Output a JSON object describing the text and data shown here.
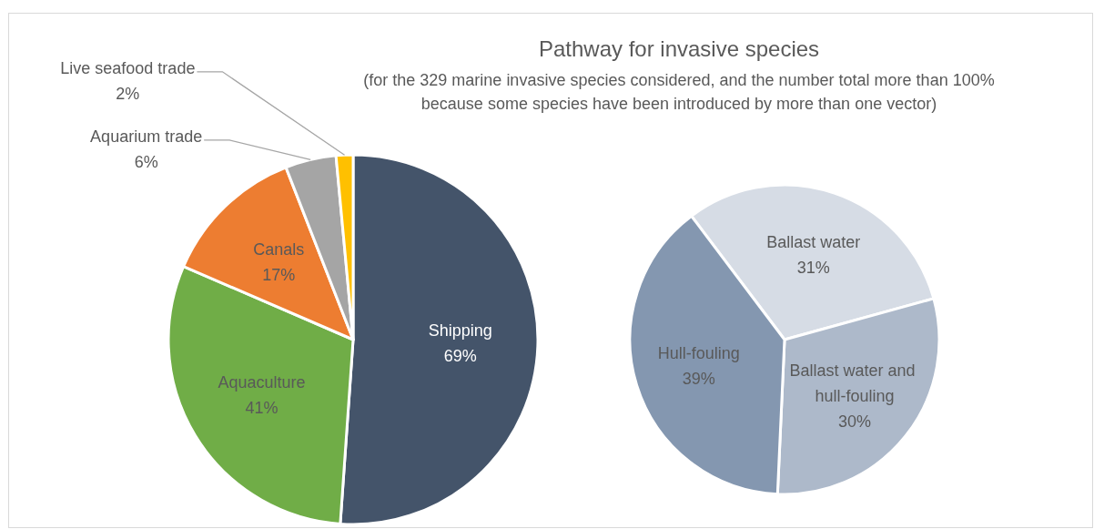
{
  "chart_data": [
    {
      "type": "pie",
      "title": "Pathway for invasive species",
      "subtitle": "(for the 329 marine invasive species considered, and the number total more than 100%\nbecause some species have been introduced by more than one vector)",
      "categories": [
        "Shipping",
        "Aquaculture",
        "Canals",
        "Aquarium trade",
        "Live seafood trade"
      ],
      "values": [
        69,
        41,
        17,
        6,
        2
      ],
      "value_labels": [
        "69%",
        "41%",
        "17%",
        "6%",
        "2%"
      ],
      "colors": [
        "#44546a",
        "#70ad47",
        "#ed7d31",
        "#a5a5a5",
        "#ffc000"
      ]
    },
    {
      "type": "pie",
      "categories": [
        "Ballast water",
        "Ballast water and hull-fouling",
        "Hull-fouling"
      ],
      "values": [
        31,
        30,
        39
      ],
      "value_labels": [
        "31%",
        "30%",
        "39%"
      ],
      "colors": [
        "#d6dce5",
        "#adb9ca",
        "#8497b0"
      ]
    }
  ]
}
